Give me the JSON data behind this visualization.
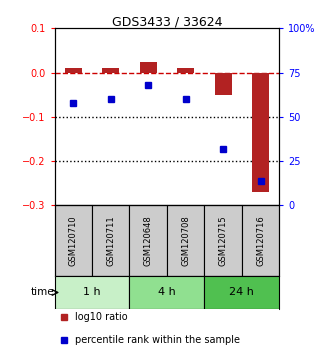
{
  "title": "GDS3433 / 33624",
  "samples": [
    "GSM120710",
    "GSM120711",
    "GSM120648",
    "GSM120708",
    "GSM120715",
    "GSM120716"
  ],
  "log10_ratio": [
    0.01,
    0.01,
    0.025,
    0.01,
    -0.05,
    -0.27
  ],
  "percentile_rank": [
    58,
    60,
    68,
    60,
    32,
    14
  ],
  "groups": [
    {
      "label": "1 h",
      "indices": [
        0,
        1
      ],
      "color": "#c8f0c8"
    },
    {
      "label": "4 h",
      "indices": [
        2,
        3
      ],
      "color": "#90e090"
    },
    {
      "label": "24 h",
      "indices": [
        4,
        5
      ],
      "color": "#50c050"
    }
  ],
  "ylim_left": [
    -0.3,
    0.1
  ],
  "ylim_right": [
    0,
    100
  ],
  "yticks_left": [
    0.1,
    0.0,
    -0.1,
    -0.2,
    -0.3
  ],
  "yticks_right": [
    100,
    75,
    50,
    25,
    0
  ],
  "bar_color": "#b22222",
  "dot_color": "#0000cc",
  "dashed_line_color": "#cc0000",
  "dotted_line_color": "#000000",
  "bg_color": "#ffffff",
  "sample_box_color": "#cccccc",
  "time_label": "time"
}
